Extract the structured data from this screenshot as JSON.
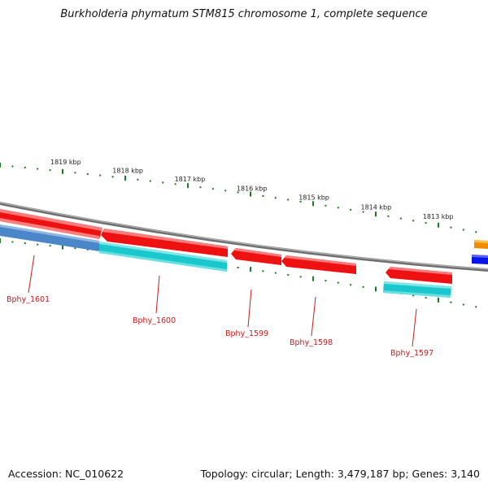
{
  "title": "Burkholderia phymatum STM815 chromosome 1, complete sequence",
  "footer": {
    "accession": "Accession: NC_010622",
    "topology": "Topology: circular; Length: 3,479,187 bp; Genes: 3,140"
  },
  "colors": {
    "backbone": "#8c8c8c",
    "forward_gene": "#ee1111",
    "reverse_gene": "#19c7cc",
    "reverse_gene_dark": "#4a86c8",
    "tick": "#1e7a1e",
    "label": "#cc1a1a",
    "edge_orange": "#f08c00",
    "edge_blue": "#0a14e6"
  },
  "scale": {
    "ticks": [
      "1819 kbp",
      "1818 kbp",
      "1817 kbp",
      "1816 kbp",
      "1815 kbp",
      "1814 kbp",
      "1813 kbp"
    ]
  },
  "genes": [
    {
      "label": "Bphy_1601"
    },
    {
      "label": "Bphy_1600"
    },
    {
      "label": "Bphy_1599"
    },
    {
      "label": "Bphy_1598"
    },
    {
      "label": "Bphy_1597"
    }
  ]
}
